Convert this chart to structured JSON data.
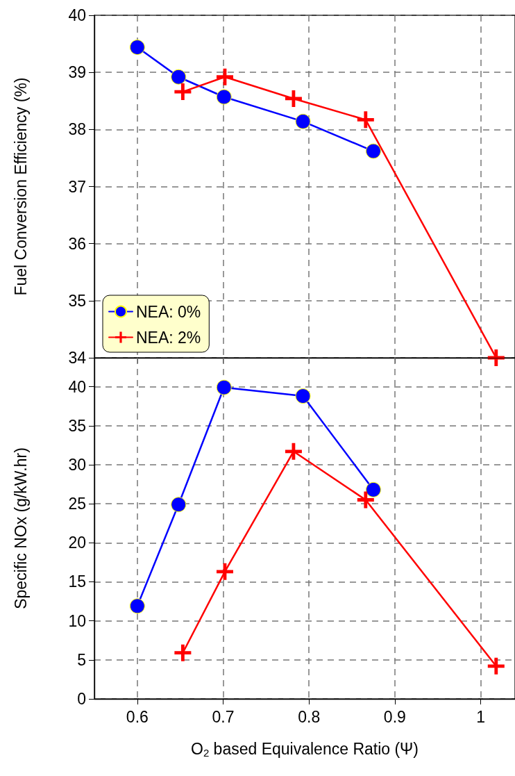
{
  "chart_data": [
    {
      "type": "line",
      "ylabel": "Fuel Conversion Efficiency (%)",
      "xlim": [
        0.55,
        1.04
      ],
      "xticks": [
        0.6,
        0.7,
        0.8,
        0.9,
        1
      ],
      "ylim": [
        34,
        40
      ],
      "yticks": [
        34,
        35,
        36,
        37,
        38,
        39,
        40
      ],
      "tick_labels": "y",
      "grid": true,
      "legend": "bottom left",
      "line_style": "solid",
      "series": [
        {
          "name": "NEA: 0%",
          "color": "#0000ff",
          "marker": "circle",
          "x": [
            0.6,
            0.648,
            0.701,
            0.793,
            0.875
          ],
          "values": [
            39.44,
            38.92,
            38.57,
            38.14,
            37.62
          ]
        },
        {
          "name": "NEA: 2%",
          "color": "#ff0000",
          "marker": "cross",
          "x": [
            0.653,
            0.702,
            0.782,
            0.866,
            1.018
          ],
          "values": [
            38.66,
            38.92,
            38.54,
            38.17,
            34.0
          ]
        }
      ]
    },
    {
      "type": "line",
      "ylabel": "Specific NOx (g/kW.hr)",
      "xlabel": "O$_{2}$ based Equivalence Ratio (Ψ)",
      "xlim": [
        0.55,
        1.04
      ],
      "xticks": [
        0.6,
        0.7,
        0.8,
        0.9,
        1
      ],
      "ylim": [
        0,
        43.7
      ],
      "yticks": [
        0,
        5,
        10,
        15,
        20,
        25,
        30,
        35,
        40
      ],
      "grid": true,
      "line_style": "solid",
      "series": [
        {
          "color": "#0000ff",
          "marker": "circle",
          "x": [
            0.6,
            0.648,
            0.701,
            0.793,
            0.875
          ],
          "values": [
            11.9,
            24.9,
            39.9,
            38.8,
            26.8
          ]
        },
        {
          "color": "#ff0000",
          "marker": "cross",
          "x": [
            0.653,
            0.702,
            0.782,
            0.866,
            1.018
          ],
          "values": [
            5.9,
            16.3,
            31.7,
            25.5,
            4.2
          ]
        }
      ]
    }
  ]
}
